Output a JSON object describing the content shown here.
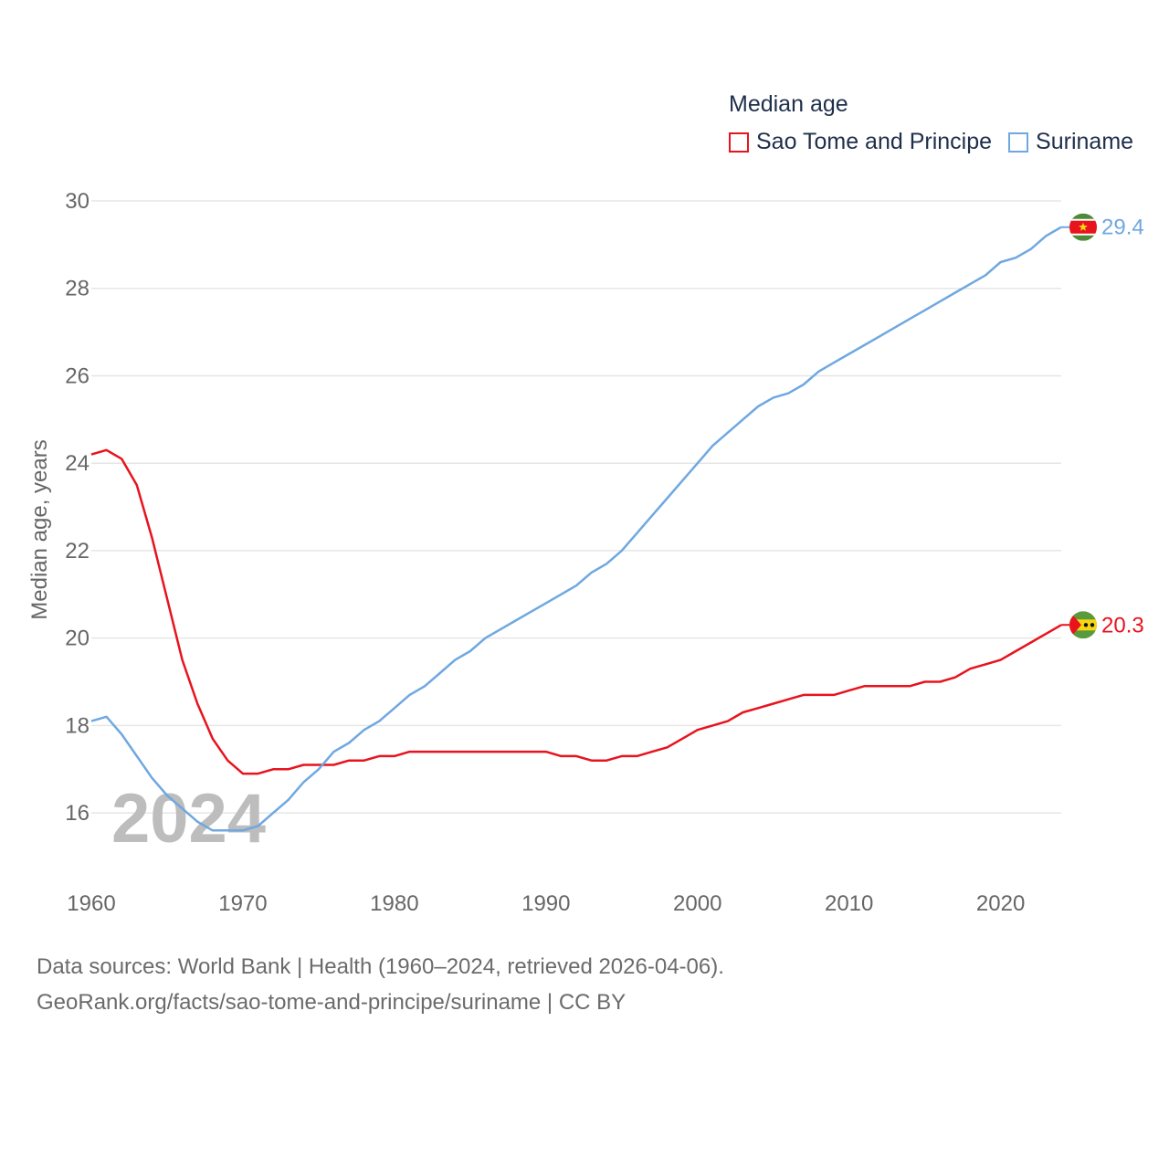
{
  "legend": {
    "title": "Median age",
    "items": [
      {
        "label": "Sao Tome and Principe",
        "color": "#e8131d"
      },
      {
        "label": "Suriname",
        "color": "#6fa8e0"
      }
    ]
  },
  "year_watermark": "2024",
  "footer": {
    "line1": "Data sources: World Bank | Health (1960–2024, retrieved 2026-04-06).",
    "line2": "GeoRank.org/facts/sao-tome-and-principe/suriname | CC BY"
  },
  "chart_data": {
    "type": "line",
    "title": "Median age",
    "xlabel": "",
    "ylabel": "Median age, years",
    "xlim": [
      1960,
      2024
    ],
    "ylim": [
      15,
      30
    ],
    "xticks": [
      1960,
      1970,
      1980,
      1990,
      2000,
      2010,
      2020
    ],
    "yticks": [
      16,
      18,
      20,
      22,
      24,
      26,
      28,
      30
    ],
    "grid": true,
    "x": [
      1960,
      1961,
      1962,
      1963,
      1964,
      1965,
      1966,
      1967,
      1968,
      1969,
      1970,
      1971,
      1972,
      1973,
      1974,
      1975,
      1976,
      1977,
      1978,
      1979,
      1980,
      1981,
      1982,
      1983,
      1984,
      1985,
      1986,
      1987,
      1988,
      1989,
      1990,
      1991,
      1992,
      1993,
      1994,
      1995,
      1996,
      1997,
      1998,
      1999,
      2000,
      2001,
      2002,
      2003,
      2004,
      2005,
      2006,
      2007,
      2008,
      2009,
      2010,
      2011,
      2012,
      2013,
      2014,
      2015,
      2016,
      2017,
      2018,
      2019,
      2020,
      2021,
      2022,
      2023,
      2024
    ],
    "series": [
      {
        "name": "Sao Tome and Principe",
        "color": "#e8131d",
        "end_label": "20.3",
        "values": [
          24.2,
          24.3,
          24.1,
          23.5,
          22.3,
          20.9,
          19.5,
          18.5,
          17.7,
          17.2,
          16.9,
          16.9,
          17.0,
          17.0,
          17.1,
          17.1,
          17.1,
          17.2,
          17.2,
          17.3,
          17.3,
          17.4,
          17.4,
          17.4,
          17.4,
          17.4,
          17.4,
          17.4,
          17.4,
          17.4,
          17.4,
          17.3,
          17.3,
          17.2,
          17.2,
          17.3,
          17.3,
          17.4,
          17.5,
          17.7,
          17.9,
          18.0,
          18.1,
          18.3,
          18.4,
          18.5,
          18.6,
          18.7,
          18.7,
          18.7,
          18.8,
          18.9,
          18.9,
          18.9,
          18.9,
          19.0,
          19.0,
          19.1,
          19.3,
          19.4,
          19.5,
          19.7,
          19.9,
          20.1,
          20.3
        ]
      },
      {
        "name": "Suriname",
        "color": "#6fa8e0",
        "end_label": "29.4",
        "values": [
          18.1,
          18.2,
          17.8,
          17.3,
          16.8,
          16.4,
          16.1,
          15.8,
          15.6,
          15.6,
          15.6,
          15.7,
          16.0,
          16.3,
          16.7,
          17.0,
          17.4,
          17.6,
          17.9,
          18.1,
          18.4,
          18.7,
          18.9,
          19.2,
          19.5,
          19.7,
          20.0,
          20.2,
          20.4,
          20.6,
          20.8,
          21.0,
          21.2,
          21.5,
          21.7,
          22.0,
          22.4,
          22.8,
          23.2,
          23.6,
          24.0,
          24.4,
          24.7,
          25.0,
          25.3,
          25.5,
          25.6,
          25.8,
          26.1,
          26.3,
          26.5,
          26.7,
          26.9,
          27.1,
          27.3,
          27.5,
          27.7,
          27.9,
          28.1,
          28.3,
          28.6,
          28.7,
          28.9,
          29.2,
          29.4
        ]
      }
    ]
  }
}
